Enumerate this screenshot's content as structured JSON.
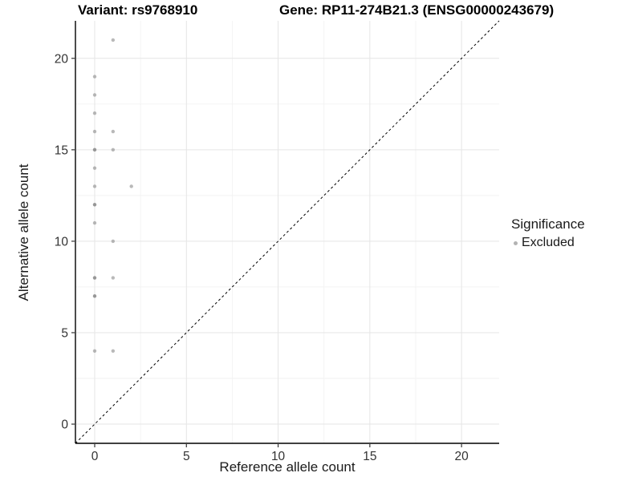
{
  "chart_data": {
    "type": "scatter",
    "title_left": "Variant: rs9768910",
    "title_right": "Gene: RP11-274B21.3 (ENSG00000243679)",
    "xlabel": "Reference allele count",
    "ylabel": "Alternative allele count",
    "xlim": [
      -1.05,
      22.05
    ],
    "ylim": [
      -1.05,
      22.05
    ],
    "xticks": [
      0,
      5,
      10,
      15,
      20
    ],
    "yticks": [
      0,
      5,
      10,
      15,
      20
    ],
    "xminor": [
      2.5,
      7.5,
      12.5,
      17.5
    ],
    "yminor": [
      2.5,
      7.5,
      12.5,
      17.5
    ],
    "grid": true,
    "identity_line": {
      "style": "dashed",
      "slope": 1,
      "intercept": 0,
      "color": "#000000"
    },
    "series": [
      {
        "name": "Excluded",
        "color": "#808080",
        "point_opacity": 0.55,
        "point_radius": 2.2,
        "points": [
          [
            0,
            19,
            1
          ],
          [
            0,
            18,
            1
          ],
          [
            0,
            17,
            1
          ],
          [
            0,
            16,
            1
          ],
          [
            0,
            15,
            2
          ],
          [
            0,
            14,
            1
          ],
          [
            0,
            13,
            1
          ],
          [
            0,
            12,
            2
          ],
          [
            0,
            11,
            1
          ],
          [
            0,
            8,
            2
          ],
          [
            0,
            7,
            2
          ],
          [
            0,
            4,
            1
          ],
          [
            1,
            21,
            1
          ],
          [
            1,
            16,
            1
          ],
          [
            1,
            15,
            1
          ],
          [
            1,
            10,
            1
          ],
          [
            1,
            8,
            1
          ],
          [
            1,
            4,
            1
          ],
          [
            2,
            13,
            1
          ]
        ]
      }
    ],
    "legend": {
      "title": "Significance",
      "position": "right",
      "items": [
        {
          "label": "Excluded",
          "color": "#b3b3b3"
        }
      ]
    },
    "colors": {
      "grid_major": "#e5e5e5",
      "grid_minor": "#f2f2f2",
      "axis_line": "#000000",
      "tick_label": "#333333"
    }
  }
}
